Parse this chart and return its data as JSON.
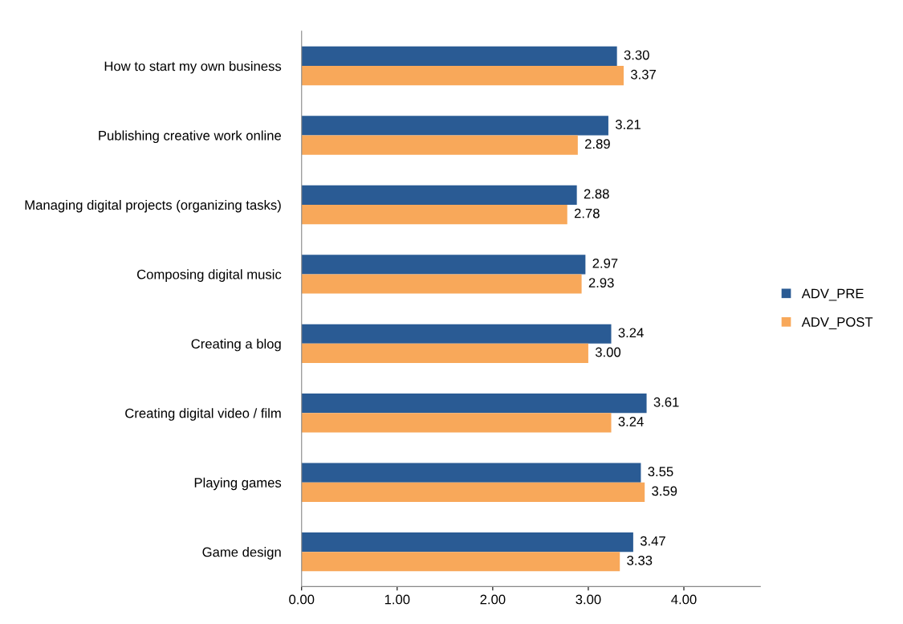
{
  "chart_data": {
    "type": "bar",
    "orientation": "horizontal",
    "categories": [
      "How to start my own business",
      "Publishing creative work online",
      "Managing digital projects (organizing tasks)",
      "Composing digital music",
      "Creating a blog",
      "Creating digital video / film",
      "Playing games",
      "Game design"
    ],
    "series": [
      {
        "name": "ADV_PRE",
        "color": "#2a5b94",
        "values": [
          3.3,
          3.21,
          2.88,
          2.97,
          3.24,
          3.61,
          3.55,
          3.47
        ],
        "value_labels": [
          "3.30",
          "3.21",
          "2.88",
          "2.97",
          "3.24",
          "3.61",
          "3.55",
          "3.47"
        ]
      },
      {
        "name": "ADV_POST",
        "color": "#f8a85a",
        "values": [
          3.37,
          2.89,
          2.78,
          2.93,
          3.0,
          3.24,
          3.59,
          3.33
        ],
        "value_labels": [
          "3.37",
          "2.89",
          "2.78",
          "2.93",
          "3.00",
          "3.24",
          "3.59",
          "3.33"
        ]
      }
    ],
    "xlim": [
      0,
      4.8
    ],
    "xticks": [
      {
        "value": 0,
        "label": "0.00"
      },
      {
        "value": 1,
        "label": "1.00"
      },
      {
        "value": 2,
        "label": "2.00"
      },
      {
        "value": 3,
        "label": "3.00"
      },
      {
        "value": 4,
        "label": "4.00"
      }
    ],
    "grid": false,
    "legend": "right"
  }
}
